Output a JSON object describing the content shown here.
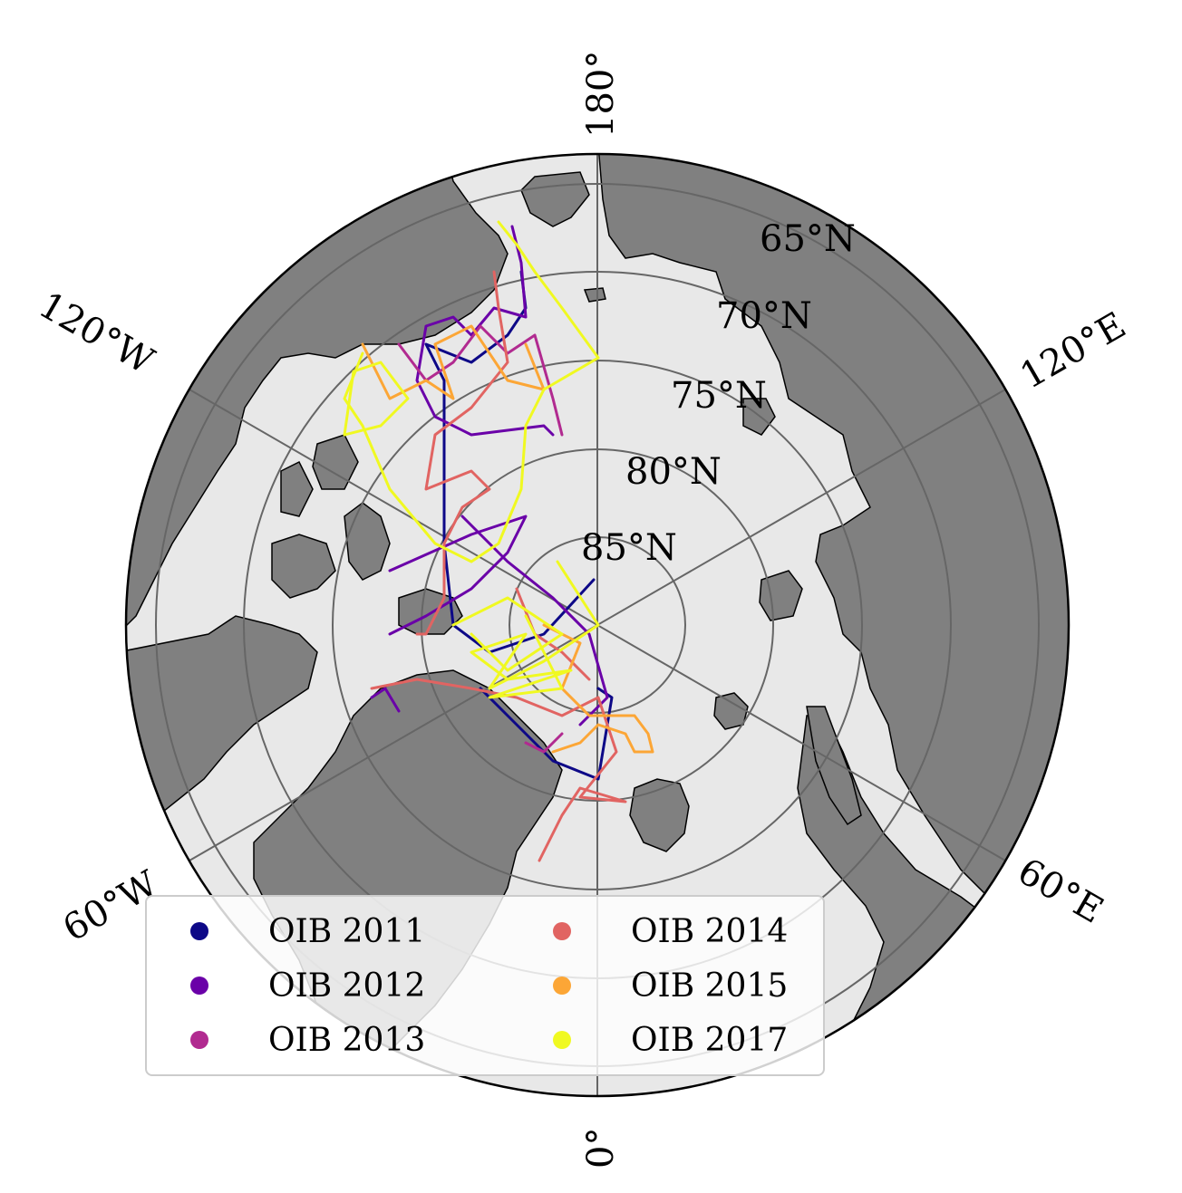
{
  "map": {
    "projection": "north-polar-stereographic",
    "land_color": "#808080",
    "ocean_color": "#e8e8e8",
    "grid_color": "#666666",
    "longitude_labels": [
      "180°",
      "120°E",
      "60°E",
      "0°",
      "60°W",
      "120°W"
    ],
    "latitude_labels": [
      "65°N",
      "70°N",
      "75°N",
      "80°N",
      "85°N"
    ]
  },
  "legend": {
    "placement": "lower-left",
    "entries": [
      {
        "label": "OIB 2011",
        "color": "#0d0887"
      },
      {
        "label": "OIB 2012",
        "color": "#6a00a8"
      },
      {
        "label": "OIB 2013",
        "color": "#b12a90"
      },
      {
        "label": "OIB 2014",
        "color": "#e16462"
      },
      {
        "label": "OIB 2015",
        "color": "#fca636"
      },
      {
        "label": "OIB 2017",
        "color": "#f0f921"
      }
    ]
  }
}
